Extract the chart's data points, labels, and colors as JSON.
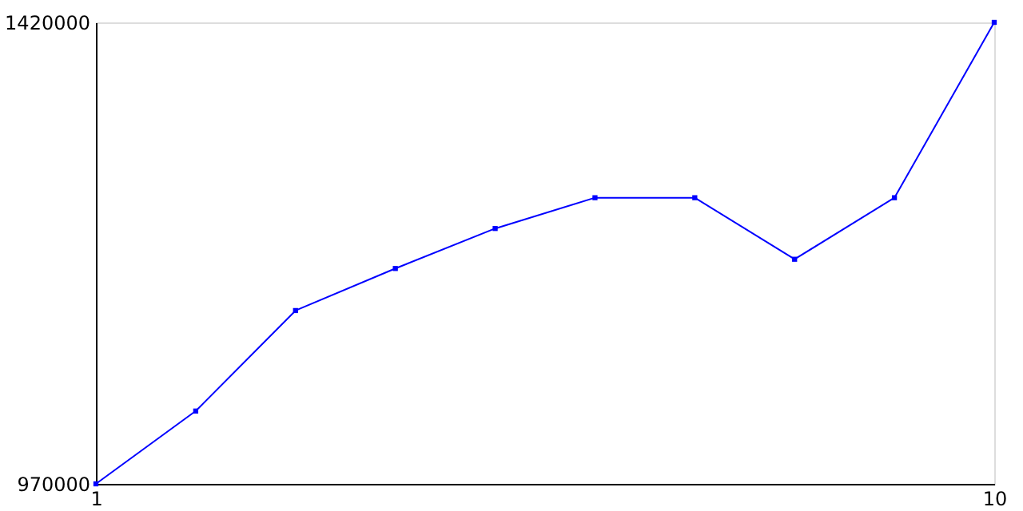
{
  "chart_data": {
    "type": "line",
    "x": [
      1,
      2,
      3,
      4,
      5,
      6,
      7,
      8,
      9,
      10
    ],
    "series": [
      {
        "color": "#0000ff",
        "values": [
          970000,
          1041000,
          1139000,
          1180000,
          1219000,
          1249000,
          1249000,
          1189000,
          1249000,
          1420000
        ]
      }
    ],
    "xlim": [
      1,
      10
    ],
    "xticks": [
      1,
      10
    ],
    "ylim": [
      970000,
      1420000
    ],
    "yticks": [
      970000,
      1420000
    ],
    "grid": false,
    "legend": false,
    "marker": "square",
    "line_style": "solid"
  }
}
